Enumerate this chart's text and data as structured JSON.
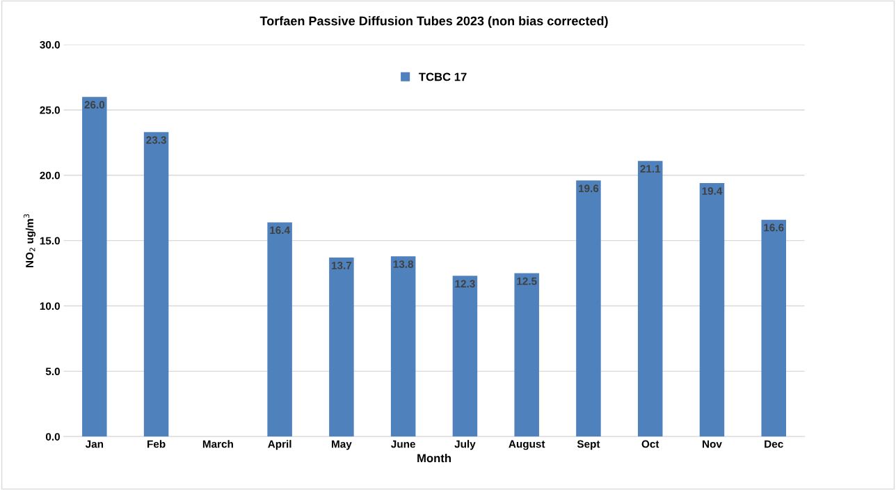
{
  "chart_data": {
    "type": "bar",
    "title": "Torfaen Passive Diffusion Tubes 2023 (non bias corrected)",
    "xlabel": "Month",
    "ylabel": "NO$_{2}$ ug/m$^{3}$",
    "categories": [
      "Jan",
      "Feb",
      "March",
      "April",
      "May",
      "June",
      "July",
      "August",
      "Sept",
      "Oct",
      "Nov",
      "Dec"
    ],
    "series": [
      {
        "name": "TCBC 17",
        "color": "#4f81bd",
        "values": [
          26.0,
          23.3,
          null,
          16.4,
          13.7,
          13.8,
          12.3,
          12.5,
          19.6,
          21.1,
          19.4,
          16.6
        ],
        "value_labels": [
          "26.0",
          "23.3",
          null,
          "16.4",
          "13.7",
          "13.8",
          "12.3",
          "12.5",
          "19.6",
          "21.1",
          "19.4",
          "16.6"
        ]
      }
    ],
    "ylim": [
      0,
      30
    ],
    "yticks": [
      {
        "value": 0,
        "label": "0.0"
      },
      {
        "value": 5,
        "label": "5.0"
      },
      {
        "value": 10,
        "label": "10.0"
      },
      {
        "value": 15,
        "label": "15.0"
      },
      {
        "value": 20,
        "label": "20.0"
      },
      {
        "value": 25,
        "label": "25.0"
      },
      {
        "value": 30,
        "label": "30.0"
      }
    ],
    "grid": "y",
    "legend": "top"
  }
}
